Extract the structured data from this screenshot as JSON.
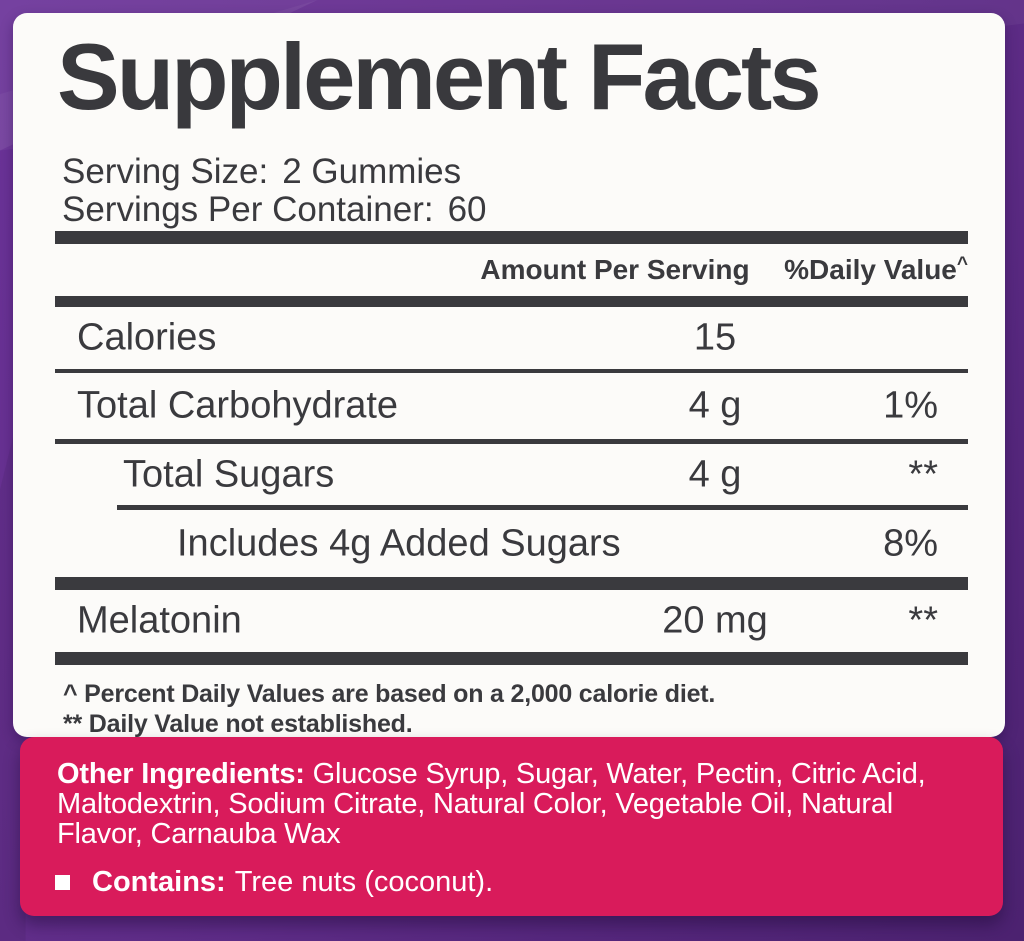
{
  "panel": {
    "title": "Supplement Facts",
    "serving_size_label": "Serving Size:",
    "serving_size_value": "2 Gummies",
    "servings_label": "Servings Per Container:",
    "servings_value": "60"
  },
  "table": {
    "amount_header": "Amount Per Serving",
    "dv_header": "%Daily Value",
    "dv_header_sup": "^",
    "rows": [
      {
        "label": "Calories",
        "amount": "15",
        "dv": ""
      },
      {
        "label": "Total Carbohydrate",
        "amount": "4 g",
        "dv": "1%"
      },
      {
        "label": "Total Sugars",
        "amount": "4 g",
        "dv": "**"
      },
      {
        "label": "Includes 4g Added Sugars",
        "amount": "",
        "dv": "8%"
      },
      {
        "label": "Melatonin",
        "amount": "20 mg",
        "dv": "**"
      }
    ],
    "footnotes": [
      "^ Percent Daily Values are based on a 2,000 calorie diet.",
      "** Daily Value not established."
    ]
  },
  "other_ingredients": {
    "label": "Other Ingredients:",
    "text": " Glucose Syrup, Sugar, Water, Pectin, Citric Acid, Maltodextrin, Sodium Citrate, Natural Color, Vegetable Oil, Natural Flavor, Carnauba Wax",
    "contains_label": "Contains:",
    "contains_text": "Tree nuts (coconut)."
  },
  "colors": {
    "background_purple": "#5e2c87",
    "panel_white": "#fcfbf9",
    "ink_dark": "#3a3a3e",
    "accent_pink": "#d91b5b",
    "ingredients_text": "#ffffff"
  }
}
